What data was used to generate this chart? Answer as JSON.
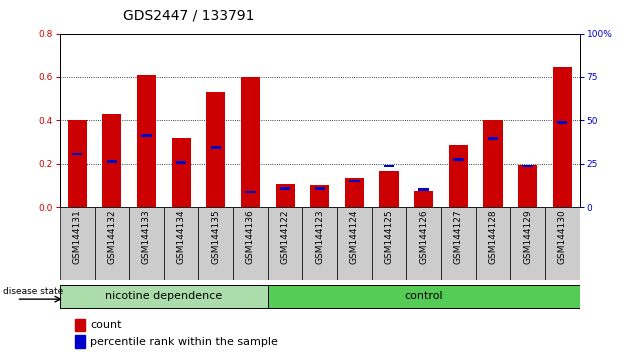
{
  "title": "GDS2447 / 133791",
  "samples": [
    "GSM144131",
    "GSM144132",
    "GSM144133",
    "GSM144134",
    "GSM144135",
    "GSM144136",
    "GSM144122",
    "GSM144123",
    "GSM144124",
    "GSM144125",
    "GSM144126",
    "GSM144127",
    "GSM144128",
    "GSM144129",
    "GSM144130"
  ],
  "count_values": [
    0.4,
    0.43,
    0.61,
    0.32,
    0.53,
    0.6,
    0.105,
    0.1,
    0.135,
    0.165,
    0.075,
    0.285,
    0.4,
    0.195,
    0.645
  ],
  "percentile_values": [
    0.245,
    0.21,
    0.33,
    0.205,
    0.275,
    0.07,
    0.085,
    0.085,
    0.12,
    0.19,
    0.08,
    0.22,
    0.315,
    0.19,
    0.39
  ],
  "bar_color": "#CC0000",
  "percentile_color": "#0000CC",
  "nicotine_color": "#AADDAA",
  "control_color": "#55CC55",
  "ylim_left": [
    0,
    0.8
  ],
  "ylim_right": [
    0,
    100
  ],
  "yticks_left": [
    0,
    0.2,
    0.4,
    0.6,
    0.8
  ],
  "yticks_right": [
    0,
    25,
    50,
    75,
    100
  ],
  "ylabel_left_color": "#CC0000",
  "ylabel_right_color": "#0000CC",
  "bar_width": 0.55,
  "pct_bar_height": 0.012,
  "pct_bar_width": 0.3,
  "tick_label_bg": "#CCCCCC",
  "title_fontsize": 10,
  "tick_fontsize": 6.5,
  "label_fontsize": 8
}
